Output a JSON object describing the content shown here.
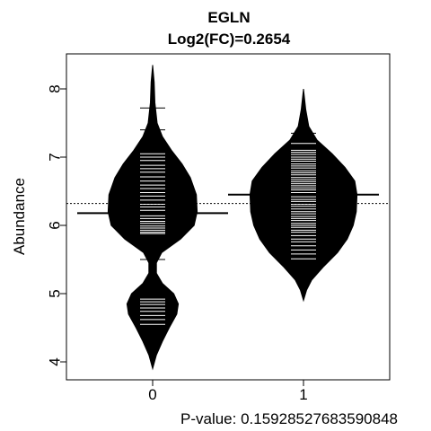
{
  "chart_data": {
    "type": "beanplot",
    "title": "EGLN",
    "subtitle": "Log2(FC)=0.2654",
    "xlabel": "P-value: 0.15928527683590848",
    "ylabel": "Abundance",
    "categories": [
      "0",
      "1"
    ],
    "yticks": [
      4,
      5,
      6,
      7,
      8
    ],
    "ylim": [
      3.7,
      8.5
    ],
    "overall_mean": 6.32,
    "groups": [
      {
        "name": "0",
        "mean": 6.18,
        "range": [
          3.9,
          8.35
        ],
        "density": [
          [
            3.9,
            0.0
          ],
          [
            4.1,
            0.05
          ],
          [
            4.3,
            0.13
          ],
          [
            4.5,
            0.22
          ],
          [
            4.7,
            0.32
          ],
          [
            4.85,
            0.34
          ],
          [
            5.0,
            0.28
          ],
          [
            5.15,
            0.13
          ],
          [
            5.3,
            0.05
          ],
          [
            5.45,
            0.05
          ],
          [
            5.6,
            0.12
          ],
          [
            5.8,
            0.37
          ],
          [
            6.0,
            0.55
          ],
          [
            6.2,
            0.59
          ],
          [
            6.45,
            0.58
          ],
          [
            6.7,
            0.5
          ],
          [
            6.9,
            0.39
          ],
          [
            7.1,
            0.25
          ],
          [
            7.3,
            0.13
          ],
          [
            7.5,
            0.06
          ],
          [
            7.8,
            0.03
          ],
          [
            8.1,
            0.02
          ],
          [
            8.35,
            0.0
          ]
        ],
        "points": [
          4.55,
          4.62,
          4.68,
          4.74,
          4.79,
          4.84,
          4.88,
          4.92,
          5.5,
          5.88,
          5.9,
          5.93,
          5.96,
          5.99,
          6.03,
          6.06,
          6.1,
          6.14,
          6.18,
          6.22,
          6.27,
          6.31,
          6.37,
          6.43,
          6.48,
          6.54,
          6.59,
          6.65,
          6.71,
          6.78,
          6.83,
          6.88,
          6.95,
          7.0,
          7.05,
          7.4,
          7.72
        ]
      },
      {
        "name": "1",
        "mean": 6.45,
        "range": [
          4.9,
          8.0
        ],
        "density": [
          [
            4.9,
            0.0
          ],
          [
            5.05,
            0.04
          ],
          [
            5.2,
            0.11
          ],
          [
            5.4,
            0.27
          ],
          [
            5.6,
            0.45
          ],
          [
            5.8,
            0.58
          ],
          [
            6.0,
            0.66
          ],
          [
            6.2,
            0.7
          ],
          [
            6.45,
            0.71
          ],
          [
            6.65,
            0.68
          ],
          [
            6.85,
            0.55
          ],
          [
            7.05,
            0.38
          ],
          [
            7.25,
            0.18
          ],
          [
            7.45,
            0.07
          ],
          [
            7.7,
            0.03
          ],
          [
            8.0,
            0.0
          ]
        ],
        "points": [
          5.51,
          5.58,
          5.64,
          5.7,
          5.76,
          5.8,
          5.85,
          5.9,
          5.93,
          5.97,
          6.0,
          6.03,
          6.07,
          6.1,
          6.13,
          6.17,
          6.2,
          6.24,
          6.28,
          6.31,
          6.35,
          6.38,
          6.42,
          6.45,
          6.48,
          6.52,
          6.55,
          6.58,
          6.61,
          6.64,
          6.67,
          6.7,
          6.74,
          6.77,
          6.8,
          6.84,
          6.87,
          6.9,
          6.94,
          6.97,
          7.0,
          7.04,
          7.07,
          7.1,
          7.2,
          7.35
        ]
      }
    ]
  }
}
